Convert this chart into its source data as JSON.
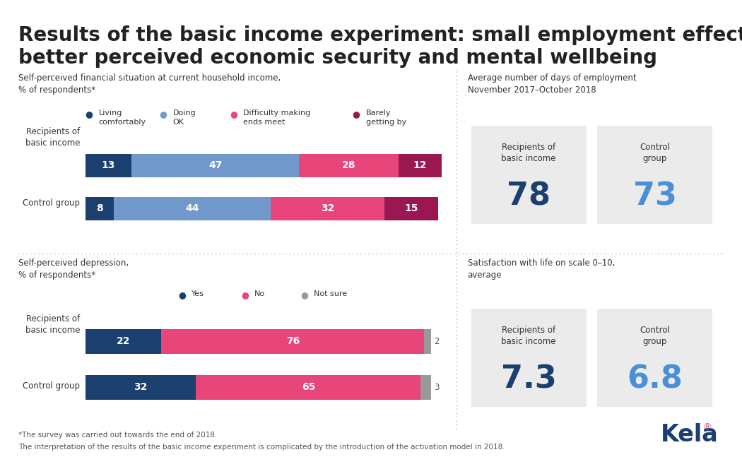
{
  "title_line1": "Results of the basic income experiment: small employment effects,",
  "title_line2": "better perceived economic security and mental wellbeing",
  "title_fontsize": 20,
  "background_color": "#ffffff",
  "section1_title": "Self-perceived financial situation at current household income,\n% of respondents*",
  "section2_title": "Average number of days of employment\nNovember 2017–October 2018",
  "section3_title": "Self-perceived depression,\n% of respondents*",
  "section4_title": "Satisfaction with life on scale 0–10,\naverage",
  "financial_legend": [
    "Living\ncomfortably",
    "Doing\nOK",
    "Difficulty making\nends meet",
    "Barely\ngetting by"
  ],
  "financial_colors": [
    "#1b3f6e",
    "#7198cb",
    "#e8457a",
    "#9b1752"
  ],
  "financial_data_recipients": [
    13,
    47,
    28,
    12
  ],
  "financial_data_control": [
    8,
    44,
    32,
    15
  ],
  "employment_recipients": 78,
  "employment_control": 73,
  "depression_legend": [
    "Yes",
    "No",
    "Not sure"
  ],
  "depression_colors": [
    "#1b3f6e",
    "#e8457a",
    "#999999"
  ],
  "depression_data_recipients": [
    22,
    76,
    2
  ],
  "depression_data_control": [
    32,
    65,
    3
  ],
  "satisfaction_recipients": "7.3",
  "satisfaction_control": "6.8",
  "box_bg_color": "#ebebeb",
  "number_color_dark": "#1b3f6e",
  "number_color_light": "#4a90d9",
  "label_recipients": "Recipients of\nbasic income",
  "label_control": "Control group",
  "label_recipients2": "Recipients of\nbasic income",
  "label_control2": "Control\ngroup",
  "footnote1": "*The survey was carried out towards the end of 2018.",
  "footnote2": "The interpretation of the results of the basic income experiment is complicated by the introduction of the activation model in 2018.",
  "divider_color": "#bbbbbb",
  "text_color": "#333333"
}
